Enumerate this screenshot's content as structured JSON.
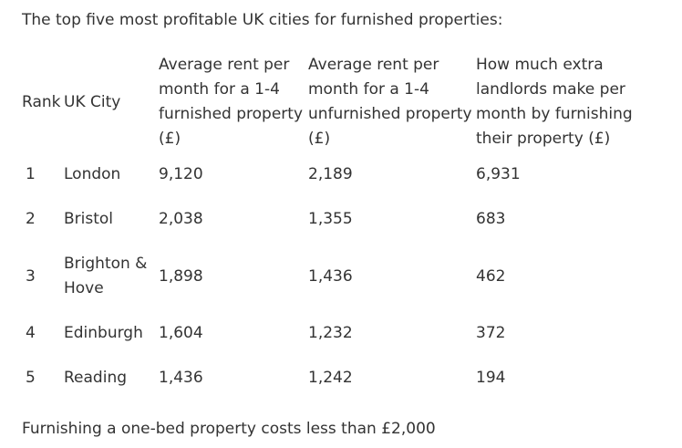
{
  "intro": "The top five most profitable UK cities for furnished properties:",
  "table": {
    "headers": [
      "Rank",
      "UK City",
      "Average rent per month for a 1-4 furnished property (£)",
      "Average rent per month for a 1-4 unfurnished property (£)",
      "How much extra landlords make per month by furnishing their property (£)"
    ],
    "rows": [
      {
        "rank": "1",
        "city": "London",
        "furnished": "9,120",
        "unfurnished": "2,189",
        "extra": "6,931"
      },
      {
        "rank": "2",
        "city": "Bristol",
        "furnished": "2,038",
        "unfurnished": "1,355",
        "extra": "683"
      },
      {
        "rank": "3",
        "city": "Brighton & Hove",
        "furnished": "1,898",
        "unfurnished": "1,436",
        "extra": "462"
      },
      {
        "rank": "4",
        "city": "Edinburgh",
        "furnished": "1,604",
        "unfurnished": "1,232",
        "extra": "372"
      },
      {
        "rank": "5",
        "city": "Reading",
        "furnished": "1,436",
        "unfurnished": "1,242",
        "extra": "194"
      }
    ]
  },
  "footer": "Furnishing a one-bed property costs less than £2,000"
}
